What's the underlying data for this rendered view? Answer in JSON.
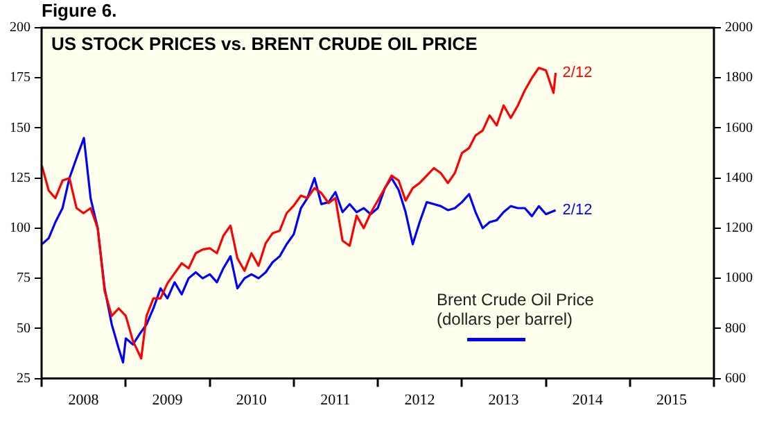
{
  "chart_data": {
    "type": "line",
    "title": "US STOCK PRICES vs. BRENT CRUDE OIL PRICE",
    "annotations": [
      "Figure 6.",
      {
        "text": "2/12",
        "x": "2014-02-12",
        "y": 177.5
      },
      {
        "text": "2/12",
        "x": "2014-02-12",
        "y": 109
      }
    ],
    "xlim": [
      "2008-01-01",
      "2016-01-01"
    ],
    "xticks": [
      {
        "value": "2008-01-01",
        "label": null
      },
      {
        "value": "2008-07-01",
        "label": "2008"
      },
      {
        "value": "2009-01-01",
        "label": null
      },
      {
        "value": "2009-07-01",
        "label": "2009"
      },
      {
        "value": "2010-01-01",
        "label": null
      },
      {
        "value": "2010-07-01",
        "label": "2010"
      },
      {
        "value": "2011-01-01",
        "label": null
      },
      {
        "value": "2011-07-01",
        "label": "2011"
      },
      {
        "value": "2012-01-01",
        "label": null
      },
      {
        "value": "2012-07-01",
        "label": "2012"
      },
      {
        "value": "2013-01-01",
        "label": null
      },
      {
        "value": "2013-07-01",
        "label": "2013"
      },
      {
        "value": "2014-01-01",
        "label": null
      },
      {
        "value": "2014-07-01",
        "label": "2014"
      },
      {
        "value": "2015-01-01",
        "label": null
      },
      {
        "value": "2015-07-01",
        "label": "2015"
      },
      {
        "value": "2016-01-01",
        "label": null
      }
    ],
    "ylim": [
      25,
      200
    ],
    "yticks": [
      25,
      50,
      75,
      100,
      125,
      150,
      175,
      200
    ],
    "y2lim": [
      600,
      2000
    ],
    "y2ticks": [
      600,
      800,
      1000,
      1200,
      1400,
      1600,
      1800,
      2000
    ],
    "grid": false,
    "legend": "bottom right",
    "marker": "none",
    "line_style": "solid",
    "series": [
      {
        "color": "#ff0000",
        "axis": "y2",
        "x": [
          "2008-01-02",
          "2008-02-01",
          "2008-03-01",
          "2008-04-01",
          "2008-05-01",
          "2008-06-01",
          "2008-07-01",
          "2008-08-01",
          "2008-09-01",
          "2008-10-01",
          "2008-11-01",
          "2008-12-01",
          "2009-01-01",
          "2009-02-01",
          "2009-03-09",
          "2009-04-01",
          "2009-05-01",
          "2009-06-01",
          "2009-07-01",
          "2009-08-01",
          "2009-09-01",
          "2009-10-01",
          "2009-11-01",
          "2009-12-01",
          "2010-01-01",
          "2010-02-01",
          "2010-03-01",
          "2010-04-01",
          "2010-05-01",
          "2010-06-01",
          "2010-07-01",
          "2010-08-01",
          "2010-09-01",
          "2010-10-01",
          "2010-11-01",
          "2010-12-01",
          "2011-01-01",
          "2011-02-01",
          "2011-03-01",
          "2011-04-01",
          "2011-05-01",
          "2011-06-01",
          "2011-07-01",
          "2011-08-01",
          "2011-09-01",
          "2011-10-01",
          "2011-11-01",
          "2011-12-01",
          "2012-01-01",
          "2012-02-01",
          "2012-03-01",
          "2012-04-01",
          "2012-05-01",
          "2012-06-01",
          "2012-07-01",
          "2012-08-01",
          "2012-09-01",
          "2012-10-01",
          "2012-11-01",
          "2012-12-01",
          "2013-01-01",
          "2013-02-01",
          "2013-03-01",
          "2013-04-01",
          "2013-05-01",
          "2013-06-01",
          "2013-07-01",
          "2013-08-01",
          "2013-09-01",
          "2013-10-01",
          "2013-11-01",
          "2013-12-01",
          "2014-01-01",
          "2014-02-03",
          "2014-02-12"
        ],
        "values": [
          1450,
          1350,
          1320,
          1390,
          1400,
          1280,
          1260,
          1280,
          1200,
          950,
          850,
          880,
          850,
          750,
          680,
          850,
          920,
          920,
          980,
          1020,
          1060,
          1040,
          1100,
          1115,
          1120,
          1100,
          1170,
          1210,
          1080,
          1030,
          1100,
          1050,
          1140,
          1180,
          1190,
          1260,
          1290,
          1330,
          1320,
          1360,
          1340,
          1300,
          1320,
          1150,
          1130,
          1250,
          1200,
          1260,
          1310,
          1360,
          1410,
          1390,
          1310,
          1360,
          1380,
          1410,
          1440,
          1420,
          1380,
          1420,
          1500,
          1520,
          1570,
          1590,
          1650,
          1610,
          1690,
          1640,
          1690,
          1750,
          1800,
          1840,
          1830,
          1740,
          1820
        ]
      },
      {
        "name": "Brent Crude Oil Price (dollars per barrel)",
        "color": "#0000ff",
        "axis": "y",
        "x": [
          "2008-01-02",
          "2008-02-01",
          "2008-03-01",
          "2008-04-01",
          "2008-05-01",
          "2008-06-01",
          "2008-07-03",
          "2008-08-01",
          "2008-09-01",
          "2008-10-01",
          "2008-11-01",
          "2008-12-01",
          "2008-12-20",
          "2009-01-01",
          "2009-02-01",
          "2009-03-01",
          "2009-04-01",
          "2009-05-01",
          "2009-06-01",
          "2009-07-01",
          "2009-08-01",
          "2009-09-01",
          "2009-10-01",
          "2009-11-01",
          "2009-12-01",
          "2010-01-01",
          "2010-02-01",
          "2010-03-01",
          "2010-04-01",
          "2010-05-01",
          "2010-06-01",
          "2010-07-01",
          "2010-08-01",
          "2010-09-01",
          "2010-10-01",
          "2010-11-01",
          "2010-12-01",
          "2011-01-01",
          "2011-02-01",
          "2011-03-01",
          "2011-04-01",
          "2011-05-01",
          "2011-06-01",
          "2011-07-01",
          "2011-08-01",
          "2011-09-01",
          "2011-10-01",
          "2011-11-01",
          "2011-12-01",
          "2012-01-01",
          "2012-02-01",
          "2012-03-01",
          "2012-04-01",
          "2012-05-01",
          "2012-06-01",
          "2012-07-01",
          "2012-08-01",
          "2012-09-01",
          "2012-10-01",
          "2012-11-01",
          "2012-12-01",
          "2013-01-01",
          "2013-02-01",
          "2013-03-01",
          "2013-04-01",
          "2013-05-01",
          "2013-06-01",
          "2013-07-01",
          "2013-08-01",
          "2013-09-01",
          "2013-10-01",
          "2013-11-01",
          "2013-12-01",
          "2014-01-01",
          "2014-02-12"
        ],
        "values": [
          92,
          95,
          103,
          110,
          125,
          135,
          145,
          115,
          100,
          70,
          52,
          40,
          33,
          45,
          42,
          47,
          52,
          60,
          70,
          65,
          73,
          67,
          75,
          78,
          75,
          77,
          73,
          80,
          86,
          70,
          75,
          77,
          75,
          78,
          83,
          86,
          92,
          97,
          110,
          115,
          125,
          112,
          113,
          118,
          108,
          112,
          108,
          110,
          107,
          110,
          120,
          125,
          119,
          108,
          92,
          103,
          113,
          112,
          111,
          109,
          110,
          113,
          117,
          108,
          100,
          103,
          104,
          108,
          111,
          110,
          110,
          106,
          111,
          107,
          109
        ]
      }
    ]
  }
}
